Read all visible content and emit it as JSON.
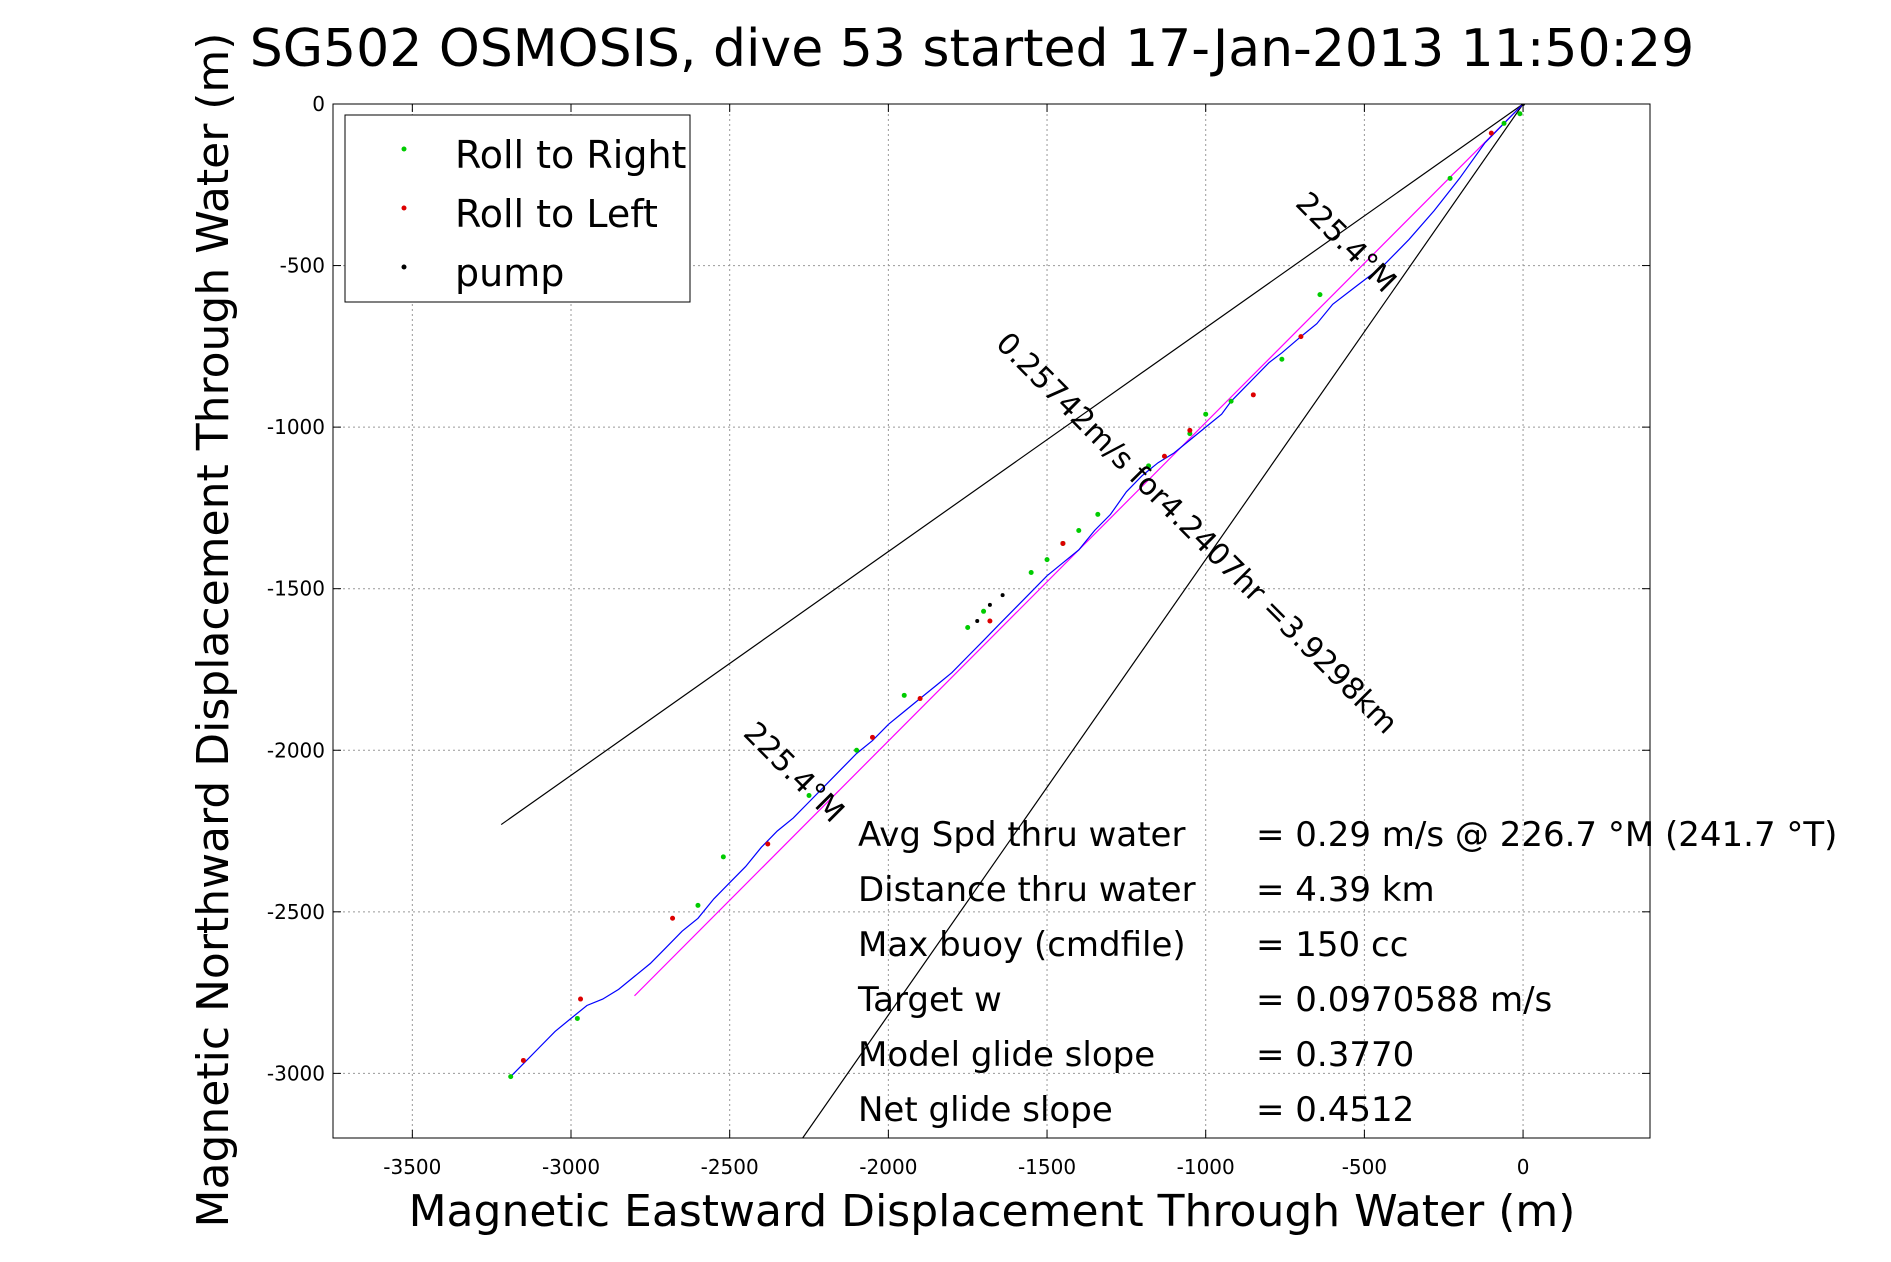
{
  "chart_data": {
    "type": "scatter",
    "title": "SG502 OSMOSIS, dive 53 started 17-Jan-2013 11:50:29",
    "xlabel": "Magnetic Eastward Displacement Through Water (m)",
    "ylabel": "Magnetic Northward Displacement Through Water (m)",
    "xlim": [
      -3750,
      400
    ],
    "ylim": [
      -3200,
      0
    ],
    "xticks": [
      -3500,
      -3000,
      -2500,
      -2000,
      -1500,
      -1000,
      -500,
      0
    ],
    "yticks": [
      0,
      -500,
      -1000,
      -1500,
      -2000,
      -2500,
      -3000
    ],
    "xtick_labels": [
      "-3500",
      "-3000",
      "-2500",
      "-2000",
      "-1500",
      "-1000",
      "-500",
      "0"
    ],
    "ytick_labels": [
      "0",
      "-500",
      "-1000",
      "-1500",
      "-2000",
      "-2500",
      "-3000"
    ],
    "grid": true,
    "legend_position": "top-left",
    "legend": [
      {
        "label": "Roll to Right",
        "color": "#00cc00"
      },
      {
        "label": "Roll to Left",
        "color": "#dd0000"
      },
      {
        "label": "pump",
        "color": "#000000"
      }
    ],
    "track": {
      "color": "#0000ff",
      "x": [
        0,
        -60,
        -120,
        -200,
        -280,
        -360,
        -440,
        -520,
        -600,
        -650,
        -700,
        -760,
        -800,
        -860,
        -920,
        -950,
        -1000,
        -1050,
        -1100,
        -1150,
        -1200,
        -1250,
        -1300,
        -1350,
        -1400,
        -1450,
        -1500,
        -1550,
        -1600,
        -1650,
        -1700,
        -1750,
        -1800,
        -1850,
        -1900,
        -1950,
        -2000,
        -2050,
        -2100,
        -2150,
        -2200,
        -2250,
        -2300,
        -2350,
        -2400,
        -2450,
        -2500,
        -2550,
        -2600,
        -2650,
        -2700,
        -2750,
        -2800,
        -2850,
        -2900,
        -2950,
        -3000,
        -3050,
        -3100,
        -3150,
        -3190
      ],
      "y": [
        0,
        -60,
        -120,
        -230,
        -330,
        -420,
        -500,
        -560,
        -620,
        -680,
        -720,
        -770,
        -800,
        -860,
        -920,
        -960,
        -1000,
        -1040,
        -1080,
        -1110,
        -1150,
        -1200,
        -1270,
        -1320,
        -1380,
        -1420,
        -1460,
        -1510,
        -1560,
        -1610,
        -1660,
        -1710,
        -1760,
        -1800,
        -1840,
        -1880,
        -1920,
        -1970,
        -2010,
        -2060,
        -2110,
        -2160,
        -2210,
        -2250,
        -2300,
        -2360,
        -2410,
        -2460,
        -2520,
        -2560,
        -2610,
        -2660,
        -2700,
        -2740,
        -2770,
        -2790,
        -2830,
        -2870,
        -2920,
        -2970,
        -3010
      ]
    },
    "heading_line": {
      "color": "#ff00ff",
      "x": [
        0,
        -2800
      ],
      "y": [
        0,
        -2760
      ]
    },
    "sector_lines": {
      "color": "#000000",
      "lines": [
        {
          "x": [
            0,
            -3220
          ],
          "y": [
            0,
            -2230
          ]
        },
        {
          "x": [
            0,
            -2270
          ],
          "y": [
            0,
            -3200
          ]
        }
      ]
    },
    "roll_right_points": {
      "color": "#00cc00",
      "x": [
        -10,
        -60,
        -230,
        -640,
        -760,
        -920,
        -1000,
        -1050,
        -1180,
        -1340,
        -1400,
        -1450,
        -1500,
        -1550,
        -1700,
        -1750,
        -1950,
        -2100,
        -2250,
        -2520,
        -2600,
        -2980,
        -3190
      ],
      "y": [
        -30,
        -60,
        -230,
        -590,
        -790,
        -920,
        -960,
        -1020,
        -1120,
        -1270,
        -1320,
        -1360,
        -1410,
        -1450,
        -1570,
        -1620,
        -1830,
        -2000,
        -2140,
        -2330,
        -2480,
        -2830,
        -3010
      ]
    },
    "roll_left_points": {
      "color": "#dd0000",
      "x": [
        -100,
        -700,
        -850,
        -1050,
        -1130,
        -1450,
        -1680,
        -1900,
        -2050,
        -2380,
        -2680,
        -2970,
        -3150
      ],
      "y": [
        -90,
        -720,
        -900,
        -1010,
        -1090,
        -1360,
        -1600,
        -1840,
        -1960,
        -2290,
        -2520,
        -2770,
        -2960
      ]
    },
    "pump_points": {
      "color": "#000000",
      "x": [
        0,
        -1680,
        -1720,
        -1640
      ],
      "y": [
        0,
        -1550,
        -1600,
        -1520
      ]
    },
    "annotations": [
      {
        "text": "225.4°M",
        "x": -580,
        "y": -450,
        "angle": 45
      },
      {
        "text": "0.25742m/s for4.2407hr =3.9298km",
        "x": -1050,
        "y": -1350,
        "angle": 45
      },
      {
        "text": "225.4°M",
        "x": -2320,
        "y": -2090,
        "angle": 45
      }
    ],
    "stats": [
      {
        "label": "Avg Spd thru water",
        "value": "=  0.29 m/s @ 226.7 °M (241.7 °T)"
      },
      {
        "label": "Distance thru water",
        "value": "=  4.39 km"
      },
      {
        "label": "Max buoy (cmdfile)",
        "value": "= 150 cc"
      },
      {
        "label": "Target w",
        "value": "= 0.0970588 m/s"
      },
      {
        "label": "Model glide slope",
        "value": "= 0.3770"
      },
      {
        "label": "Net glide slope",
        "value": "= 0.4512"
      }
    ]
  }
}
